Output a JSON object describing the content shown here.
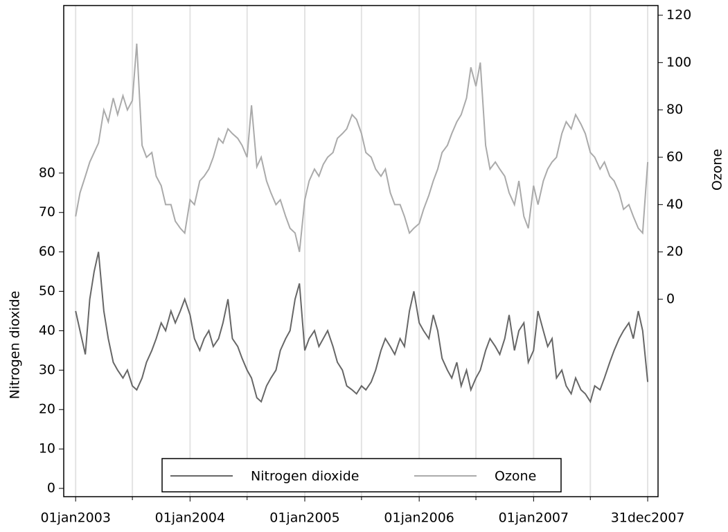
{
  "chart_data": {
    "type": "line",
    "y_label": "Nitrogen dioxide",
    "y2_label": "Ozone",
    "x": [
      "2003-01-01",
      "2003-01-15",
      "2003-02-01",
      "2003-02-15",
      "2003-03-01",
      "2003-03-15",
      "2003-04-01",
      "2003-04-15",
      "2003-05-01",
      "2003-05-15",
      "2003-06-01",
      "2003-06-15",
      "2003-07-01",
      "2003-07-15",
      "2003-08-01",
      "2003-08-15",
      "2003-09-01",
      "2003-09-15",
      "2003-10-01",
      "2003-10-15",
      "2003-11-01",
      "2003-11-15",
      "2003-12-01",
      "2003-12-15",
      "2004-01-01",
      "2004-01-15",
      "2004-02-01",
      "2004-02-15",
      "2004-03-01",
      "2004-03-15",
      "2004-04-01",
      "2004-04-15",
      "2004-05-01",
      "2004-05-15",
      "2004-06-01",
      "2004-06-15",
      "2004-07-01",
      "2004-07-15",
      "2004-08-01",
      "2004-08-15",
      "2004-09-01",
      "2004-09-15",
      "2004-10-01",
      "2004-10-15",
      "2004-11-01",
      "2004-11-15",
      "2004-12-01",
      "2004-12-15",
      "2005-01-01",
      "2005-01-15",
      "2005-02-01",
      "2005-02-15",
      "2005-03-01",
      "2005-03-15",
      "2005-04-01",
      "2005-04-15",
      "2005-05-01",
      "2005-05-15",
      "2005-06-01",
      "2005-06-15",
      "2005-07-01",
      "2005-07-15",
      "2005-08-01",
      "2005-08-15",
      "2005-09-01",
      "2005-09-15",
      "2005-10-01",
      "2005-10-15",
      "2005-11-01",
      "2005-11-15",
      "2005-12-01",
      "2005-12-15",
      "2006-01-01",
      "2006-01-15",
      "2006-02-01",
      "2006-02-15",
      "2006-03-01",
      "2006-03-15",
      "2006-04-01",
      "2006-04-15",
      "2006-05-01",
      "2006-05-15",
      "2006-06-01",
      "2006-06-15",
      "2006-07-01",
      "2006-07-15",
      "2006-08-01",
      "2006-08-15",
      "2006-09-01",
      "2006-09-15",
      "2006-10-01",
      "2006-10-15",
      "2006-11-01",
      "2006-11-15",
      "2006-12-01",
      "2006-12-15",
      "2007-01-01",
      "2007-01-15",
      "2007-02-01",
      "2007-02-15",
      "2007-03-01",
      "2007-03-15",
      "2007-04-01",
      "2007-04-15",
      "2007-05-01",
      "2007-05-15",
      "2007-06-01",
      "2007-06-15",
      "2007-07-01",
      "2007-07-15",
      "2007-08-01",
      "2007-08-15",
      "2007-09-01",
      "2007-09-15",
      "2007-10-01",
      "2007-10-15",
      "2007-11-01",
      "2007-11-15",
      "2007-12-01",
      "2007-12-15",
      "2007-12-31"
    ],
    "series": [
      {
        "name": "Nitrogen dioxide",
        "color": "#666666",
        "axis": "y",
        "values": [
          45,
          40,
          34,
          48,
          55,
          60,
          45,
          38,
          32,
          30,
          28,
          30,
          26,
          25,
          28,
          32,
          35,
          38,
          42,
          40,
          45,
          42,
          45,
          48,
          44,
          38,
          35,
          38,
          40,
          36,
          38,
          42,
          48,
          38,
          36,
          33,
          30,
          28,
          23,
          22,
          26,
          28,
          30,
          35,
          38,
          40,
          48,
          52,
          35,
          38,
          40,
          36,
          38,
          40,
          36,
          32,
          30,
          26,
          25,
          24,
          26,
          25,
          27,
          30,
          35,
          38,
          36,
          34,
          38,
          36,
          45,
          50,
          42,
          40,
          38,
          44,
          40,
          33,
          30,
          28,
          32,
          26,
          30,
          25,
          28,
          30,
          35,
          38,
          36,
          34,
          38,
          44,
          35,
          40,
          42,
          32,
          35,
          45,
          40,
          36,
          38,
          28,
          30,
          26,
          24,
          28,
          25,
          24,
          22,
          26,
          25,
          28,
          32,
          35,
          38,
          40,
          42,
          38,
          45,
          40,
          27
        ]
      },
      {
        "name": "Ozone",
        "color": "#aaaaaa",
        "axis": "y2",
        "values": [
          35,
          45,
          52,
          58,
          62,
          66,
          80,
          75,
          85,
          78,
          86,
          80,
          84,
          108,
          65,
          60,
          62,
          52,
          48,
          40,
          40,
          33,
          30,
          28,
          42,
          40,
          50,
          52,
          55,
          60,
          68,
          66,
          72,
          70,
          68,
          65,
          60,
          82,
          56,
          60,
          50,
          45,
          40,
          42,
          35,
          30,
          28,
          20,
          42,
          50,
          55,
          52,
          57,
          60,
          62,
          68,
          70,
          72,
          78,
          76,
          70,
          62,
          60,
          55,
          52,
          55,
          45,
          40,
          40,
          35,
          28,
          30,
          32,
          38,
          44,
          50,
          55,
          62,
          65,
          70,
          75,
          78,
          85,
          98,
          90,
          100,
          65,
          55,
          58,
          55,
          52,
          45,
          40,
          50,
          35,
          30,
          48,
          40,
          50,
          55,
          58,
          60,
          70,
          75,
          72,
          78,
          74,
          70,
          62,
          60,
          55,
          58,
          52,
          50,
          45,
          38,
          40,
          35,
          30,
          28,
          58
        ]
      }
    ],
    "xlim": [
      "2002-11-24",
      "2008-02-02"
    ],
    "xticks": [
      {
        "value": "2003-01-01",
        "label": "01jan2003"
      },
      {
        "value": "2004-01-01",
        "label": "01jan2004"
      },
      {
        "value": "2005-01-01",
        "label": "01jan2005"
      },
      {
        "value": "2006-01-01",
        "label": "01jan2006"
      },
      {
        "value": "2007-01-01",
        "label": "01jan2007"
      },
      {
        "value": "2007-12-31",
        "label": "31dec2007"
      }
    ],
    "xminorticks": [
      "2003-07-01",
      "2004-07-01",
      "2005-07-01",
      "2006-07-01",
      "2007-07-01"
    ],
    "ylim": [
      -2.1,
      122.5
    ],
    "yticks": [
      0,
      10,
      20,
      30,
      40,
      50,
      60,
      70,
      80
    ],
    "y2lim": [
      -83.4,
      124.1
    ],
    "y2ticks": [
      0,
      20,
      40,
      60,
      80,
      100,
      120
    ],
    "grid": true,
    "legend": "bottom"
  }
}
